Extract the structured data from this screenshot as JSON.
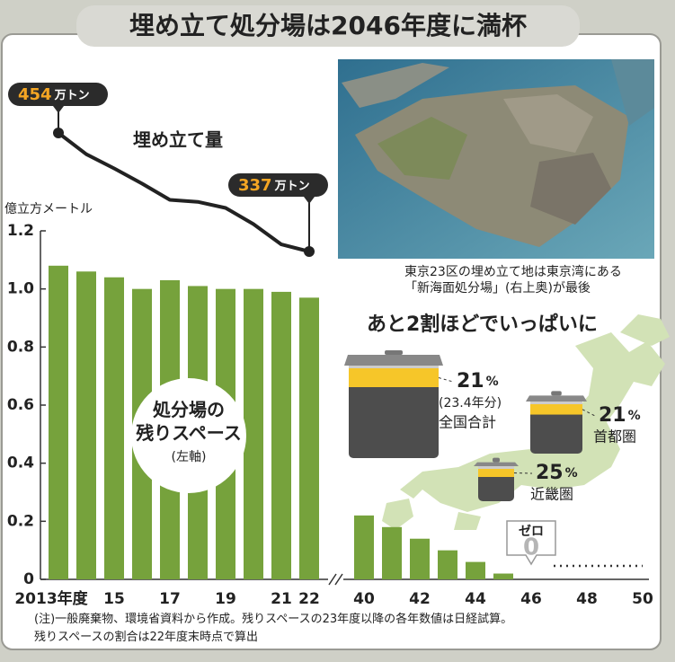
{
  "title": "埋め立て処分場は2046年度に満杯",
  "photo_caption": "東京23区の埋め立て地は東京湾にある\n「新海面処分場」(右上奥)が最後",
  "regions": {
    "title": "あと2割ほどでいっぱいに",
    "unit": "%",
    "items": [
      {
        "name": "全国合計",
        "value": 21,
        "note": "(23.4年分)"
      },
      {
        "name": "首都圏",
        "value": 21
      },
      {
        "name": "近畿圏",
        "value": 25
      }
    ]
  },
  "note": "(注)一般廃棄物、環境省資料から作成。残りスペースの23年度以降の各年数値は日経試算。\n残りスペースの割合は22年度末時点で算出",
  "chart_data": {
    "type": "bar",
    "y_label": "億立方メートル",
    "categories": [
      "2013年度",
      null,
      "15",
      null,
      "17",
      null,
      "19",
      null,
      "21",
      "22",
      "40",
      null,
      "42",
      null,
      "44",
      null,
      "46",
      null,
      "48",
      null,
      "50"
    ],
    "ylim": [
      0,
      1.2
    ],
    "yticks": [
      0,
      0.2,
      0.4,
      0.6,
      0.8,
      {
        "value": 1,
        "label": "1.0"
      },
      1.2
    ],
    "series": [
      {
        "name": "処分場の\n残りスペース",
        "note": "(左軸)",
        "color": "#76a23c",
        "callout": "ゼロ",
        "values": [
          1.08,
          1.06,
          1.04,
          1.0,
          1.03,
          1.01,
          1.0,
          1.0,
          0.99,
          0.97,
          0.22,
          0.18,
          0.14,
          0.1,
          0.06,
          0.02,
          0,
          null,
          null,
          null,
          null
        ],
        "value_labels": [
          null,
          null,
          null,
          null,
          null,
          null,
          null,
          null,
          null,
          null,
          null,
          null,
          null,
          null,
          null,
          null,
          "0",
          null,
          null,
          null,
          null
        ]
      },
      {
        "name": "埋め立て量",
        "type": "line",
        "color": "#222222",
        "unit": "万トン",
        "values": [
          454,
          433,
          419,
          404,
          388,
          386,
          380,
          364,
          344,
          337,
          null,
          null,
          null,
          null,
          null,
          null,
          null,
          null,
          null,
          null,
          null
        ],
        "value_labels": [
          "454",
          null,
          null,
          null,
          null,
          null,
          null,
          null,
          null,
          "337",
          null,
          null,
          null,
          null,
          null,
          null,
          null,
          null,
          null,
          null,
          null
        ]
      }
    ]
  }
}
